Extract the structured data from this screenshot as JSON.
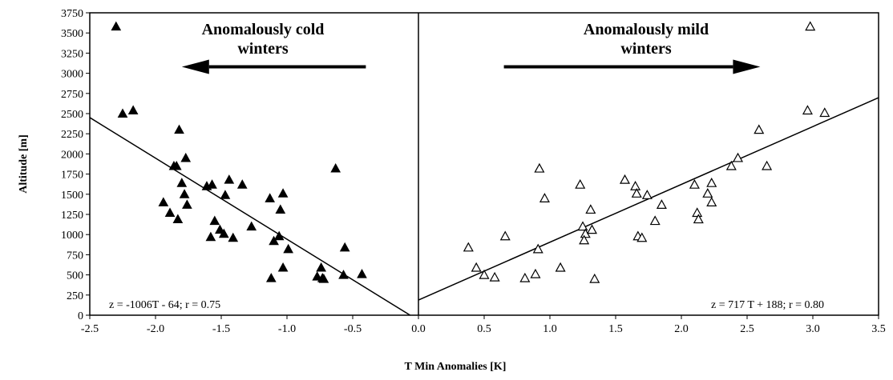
{
  "chart_data": {
    "type": "scatter",
    "xlabel": "T Min Anomalies [K]",
    "ylabel": "Altitude [m]",
    "xlim": [
      -2.5,
      3.5
    ],
    "ylim": [
      0,
      3750
    ],
    "xticks": [
      -2.5,
      -2.0,
      -1.5,
      -1.0,
      -0.5,
      0.0,
      0.5,
      1.0,
      1.5,
      2.0,
      2.5,
      3.0,
      3.5
    ],
    "xtick_labels": [
      "-2.5",
      "-2.0",
      "-1.5",
      "-1.0",
      "-0.5",
      "0.0",
      "0.5",
      "1.0",
      "1.5",
      "2.0",
      "2.5",
      "3.0",
      "3.5"
    ],
    "yticks": [
      0,
      250,
      500,
      750,
      1000,
      1250,
      1500,
      1750,
      2000,
      2250,
      2500,
      2750,
      3000,
      3250,
      3500,
      3750
    ],
    "ytick_labels": [
      "0",
      "250",
      "500",
      "750",
      "1000",
      "1250",
      "1500",
      "1750",
      "2000",
      "2250",
      "2500",
      "2750",
      "3000",
      "3250",
      "3500",
      "3750"
    ],
    "grid": false,
    "divider_x": 0.0,
    "annotations": {
      "cold_title": [
        "Anomalously cold",
        "winters"
      ],
      "mild_title": [
        "Anomalously mild",
        "winters"
      ],
      "cold_equation": "z = -1006T - 64; r = 0.75",
      "mild_equation": "z = 717 T + 188; r = 0.80"
    },
    "arrows": [
      {
        "direction": "left",
        "from_x": -0.4,
        "to_x": -1.8,
        "y": 3080
      },
      {
        "direction": "right",
        "from_x": 0.65,
        "to_x": 2.6,
        "y": 3080
      }
    ],
    "series": [
      {
        "marker": "filled-triangle",
        "color": "#000000",
        "points": [
          [
            -2.3,
            3580
          ],
          [
            -2.25,
            2500
          ],
          [
            -2.17,
            2540
          ],
          [
            -1.82,
            2300
          ],
          [
            -1.77,
            1950
          ],
          [
            -1.86,
            1850
          ],
          [
            -1.84,
            1850
          ],
          [
            -1.8,
            1640
          ],
          [
            -1.78,
            1500
          ],
          [
            -1.76,
            1370
          ],
          [
            -1.94,
            1400
          ],
          [
            -1.89,
            1270
          ],
          [
            -1.83,
            1190
          ],
          [
            -1.61,
            1600
          ],
          [
            -1.57,
            1620
          ],
          [
            -1.47,
            1490
          ],
          [
            -1.44,
            1680
          ],
          [
            -1.34,
            1620
          ],
          [
            -1.55,
            1170
          ],
          [
            -1.51,
            1060
          ],
          [
            -1.48,
            1010
          ],
          [
            -1.58,
            970
          ],
          [
            -1.41,
            960
          ],
          [
            -1.27,
            1100
          ],
          [
            -1.13,
            1450
          ],
          [
            -1.03,
            1510
          ],
          [
            -1.05,
            1310
          ],
          [
            -1.06,
            980
          ],
          [
            -1.1,
            920
          ],
          [
            -0.99,
            820
          ],
          [
            -1.03,
            590
          ],
          [
            -1.12,
            460
          ],
          [
            -0.74,
            590
          ],
          [
            -0.77,
            480
          ],
          [
            -0.73,
            460
          ],
          [
            -0.72,
            450
          ],
          [
            -0.63,
            1820
          ],
          [
            -0.56,
            840
          ],
          [
            -0.57,
            500
          ],
          [
            -0.43,
            510
          ]
        ]
      },
      {
        "marker": "open-triangle",
        "color": "#000000",
        "points": [
          [
            0.38,
            840
          ],
          [
            0.44,
            590
          ],
          [
            0.5,
            500
          ],
          [
            0.58,
            470
          ],
          [
            0.66,
            980
          ],
          [
            0.81,
            460
          ],
          [
            0.89,
            510
          ],
          [
            0.91,
            820
          ],
          [
            0.92,
            1820
          ],
          [
            0.96,
            1450
          ],
          [
            1.08,
            590
          ],
          [
            1.23,
            1620
          ],
          [
            1.25,
            1100
          ],
          [
            1.27,
            1010
          ],
          [
            1.26,
            930
          ],
          [
            1.31,
            1310
          ],
          [
            1.32,
            1060
          ],
          [
            1.34,
            450
          ],
          [
            1.57,
            1680
          ],
          [
            1.65,
            1600
          ],
          [
            1.66,
            1510
          ],
          [
            1.67,
            980
          ],
          [
            1.7,
            960
          ],
          [
            1.74,
            1490
          ],
          [
            1.8,
            1170
          ],
          [
            1.85,
            1370
          ],
          [
            2.1,
            1620
          ],
          [
            2.12,
            1270
          ],
          [
            2.13,
            1190
          ],
          [
            2.2,
            1510
          ],
          [
            2.23,
            1640
          ],
          [
            2.23,
            1400
          ],
          [
            2.38,
            1850
          ],
          [
            2.43,
            1950
          ],
          [
            2.59,
            2300
          ],
          [
            2.65,
            1850
          ],
          [
            2.96,
            2540
          ],
          [
            2.98,
            3580
          ],
          [
            3.09,
            2510
          ]
        ]
      }
    ],
    "regression_lines": [
      {
        "slope": -1006,
        "intercept": -64,
        "x_from": -2.5,
        "x_to": -0.0636
      },
      {
        "slope": 717,
        "intercept": 188,
        "x_from": 0.0,
        "x_to": 3.5
      }
    ]
  }
}
